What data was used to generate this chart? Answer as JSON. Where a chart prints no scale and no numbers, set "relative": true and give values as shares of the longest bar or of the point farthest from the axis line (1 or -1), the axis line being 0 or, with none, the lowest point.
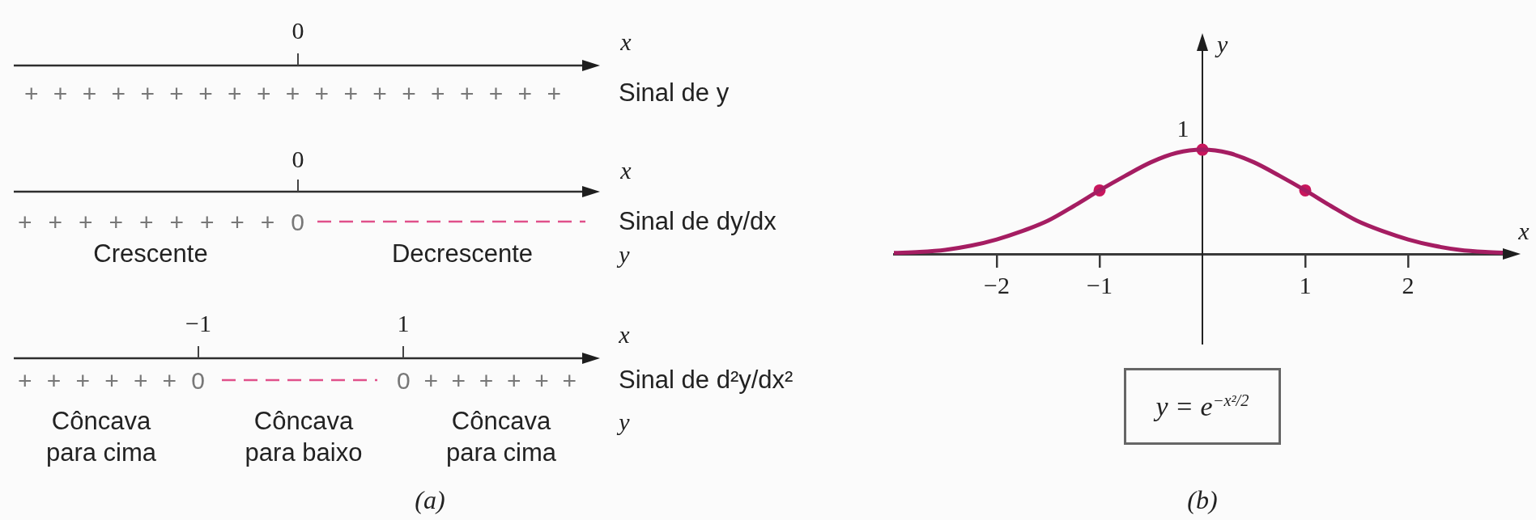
{
  "chart_data": [
    {
      "type": "other",
      "annotations": [
        "0",
        "x",
        "+ + + + + + + + + + + + + + + + + + +",
        "Sinal de y",
        "0",
        "x",
        "+ + + + + + + + + 0",
        "Sinal de dy/dx",
        "Crescente",
        "Decrescente",
        "y",
        "−1",
        "1",
        "x",
        "+ + + + + + 0",
        "0 + + + + + +",
        "Sinal de d²y/dx²",
        "Côncava para cima",
        "Côncava para baixo",
        "Côncava para cima",
        "y",
        "(a)"
      ]
    },
    {
      "type": "line",
      "relative": true,
      "xlabel": "x",
      "ylabel": "y",
      "x": [
        -3,
        -2.75,
        -2.5,
        -2.25,
        -2,
        -1.75,
        -1.5,
        -1.25,
        -1,
        -0.75,
        -0.5,
        -0.25,
        0,
        0.25,
        0.5,
        0.75,
        1,
        1.25,
        1.5,
        1.75,
        2,
        2.25,
        2.5,
        2.75,
        3
      ],
      "xlim": [
        -3,
        3
      ],
      "xticks": [
        {
          "value": -2,
          "label": "−2"
        },
        {
          "value": -1,
          "label": "−1"
        },
        1,
        2
      ],
      "series": [
        {
          "color": "#a51d62",
          "values": [
            0.01,
            0.02,
            0.04,
            0.08,
            0.14,
            0.22,
            0.32,
            0.46,
            0.61,
            0.75,
            0.88,
            0.97,
            1,
            0.97,
            0.88,
            0.75,
            0.61,
            0.46,
            0.32,
            0.22,
            0.14,
            0.08,
            0.04,
            0.02,
            0.01
          ]
        },
        {
          "type": "scatter",
          "x": [
            -1,
            0,
            1
          ],
          "values": [
            0.61,
            1,
            0.61
          ],
          "color": "#c8175d",
          "marker": "circle"
        }
      ],
      "annotations": [
        {
          "text": "1",
          "x": 0,
          "y": 1
        },
        "y = e$^{−x²/2}$",
        "(b)"
      ]
    }
  ]
}
